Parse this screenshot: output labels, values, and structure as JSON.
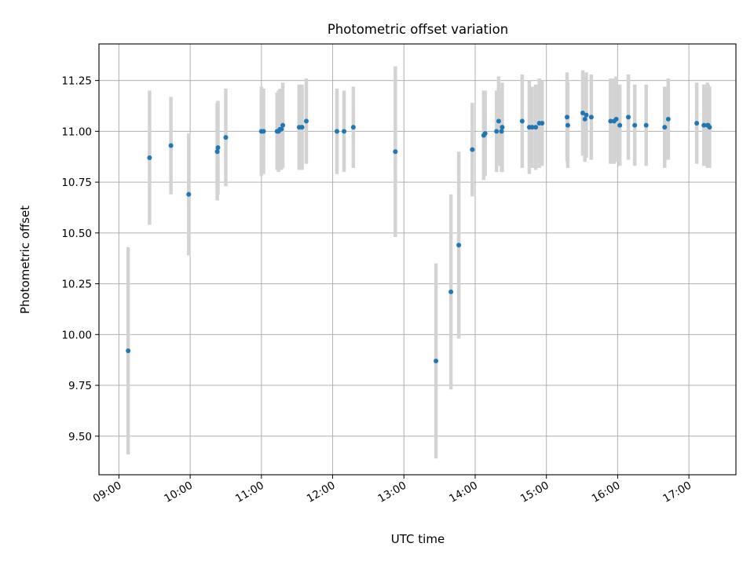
{
  "chart_data": {
    "type": "scatter",
    "title": "Photometric offset variation",
    "xlabel": "UTC time",
    "ylabel": "Photometric offset",
    "x_unit": "hours UTC",
    "xlim": [
      8.72,
      17.66
    ],
    "ylim": [
      9.31,
      11.43
    ],
    "grid": true,
    "legend": "none",
    "x_ticks": [
      {
        "value": 9,
        "label": "09:00"
      },
      {
        "value": 10,
        "label": "10:00"
      },
      {
        "value": 11,
        "label": "11:00"
      },
      {
        "value": 12,
        "label": "12:00"
      },
      {
        "value": 13,
        "label": "13:00"
      },
      {
        "value": 14,
        "label": "14:00"
      },
      {
        "value": 15,
        "label": "15:00"
      },
      {
        "value": 16,
        "label": "16:00"
      },
      {
        "value": 17,
        "label": "17:00"
      }
    ],
    "y_ticks": [
      {
        "value": 9.5,
        "label": "9.50"
      },
      {
        "value": 9.75,
        "label": "9.75"
      },
      {
        "value": 10.0,
        "label": "10.00"
      },
      {
        "value": 10.25,
        "label": "10.25"
      },
      {
        "value": 10.5,
        "label": "10.50"
      },
      {
        "value": 10.75,
        "label": "10.75"
      },
      {
        "value": 11.0,
        "label": "11.00"
      },
      {
        "value": 11.25,
        "label": "11.25"
      }
    ],
    "colors": {
      "points": "#1f77b4",
      "errorbars": "#d3d3d3"
    },
    "series": [
      {
        "x": [
          9.13,
          9.43,
          9.73,
          9.98,
          10.38,
          10.39,
          10.5,
          11.0,
          11.03,
          11.22,
          11.24,
          11.26,
          11.28,
          11.3,
          11.53,
          11.57,
          11.63,
          12.06,
          12.16,
          12.29,
          12.88,
          13.45,
          13.66,
          13.77,
          13.96,
          14.12,
          14.14,
          14.3,
          14.33,
          14.37,
          14.38,
          14.66,
          14.76,
          14.8,
          14.85,
          14.9,
          14.94,
          15.29,
          15.3,
          15.51,
          15.54,
          15.56,
          15.63,
          15.9,
          15.95,
          15.98,
          16.03,
          16.15,
          16.24,
          16.4,
          16.66,
          16.71,
          17.11,
          17.21,
          17.26,
          17.27,
          17.29
        ],
        "y": [
          9.92,
          10.87,
          10.93,
          10.69,
          10.9,
          10.92,
          10.97,
          11.0,
          11.0,
          11.0,
          11.0,
          11.01,
          11.01,
          11.03,
          11.02,
          11.02,
          11.05,
          11.0,
          11.0,
          11.02,
          10.9,
          9.87,
          10.21,
          10.44,
          10.91,
          10.98,
          10.99,
          11.0,
          11.05,
          11.0,
          11.02,
          11.05,
          11.02,
          11.02,
          11.02,
          11.04,
          11.04,
          11.07,
          11.03,
          11.09,
          11.06,
          11.08,
          11.07,
          11.05,
          11.05,
          11.06,
          11.03,
          11.07,
          11.03,
          11.03,
          11.02,
          11.06,
          11.04,
          11.03,
          11.03,
          11.03,
          11.02
        ],
        "err": [
          0.51,
          0.33,
          0.24,
          0.3,
          0.24,
          0.23,
          0.24,
          0.22,
          0.21,
          0.19,
          0.2,
          0.2,
          0.2,
          0.21,
          0.21,
          0.21,
          0.21,
          0.21,
          0.2,
          0.2,
          0.42,
          0.48,
          0.48,
          0.46,
          0.23,
          0.22,
          0.21,
          0.2,
          0.22,
          0.2,
          0.22,
          0.23,
          0.23,
          0.2,
          0.21,
          0.22,
          0.21,
          0.22,
          0.21,
          0.21,
          0.21,
          0.21,
          0.21,
          0.21,
          0.21,
          0.21,
          0.2,
          0.21,
          0.2,
          0.2,
          0.2,
          0.2,
          0.2,
          0.2,
          0.21,
          0.2,
          0.2
        ]
      }
    ]
  }
}
